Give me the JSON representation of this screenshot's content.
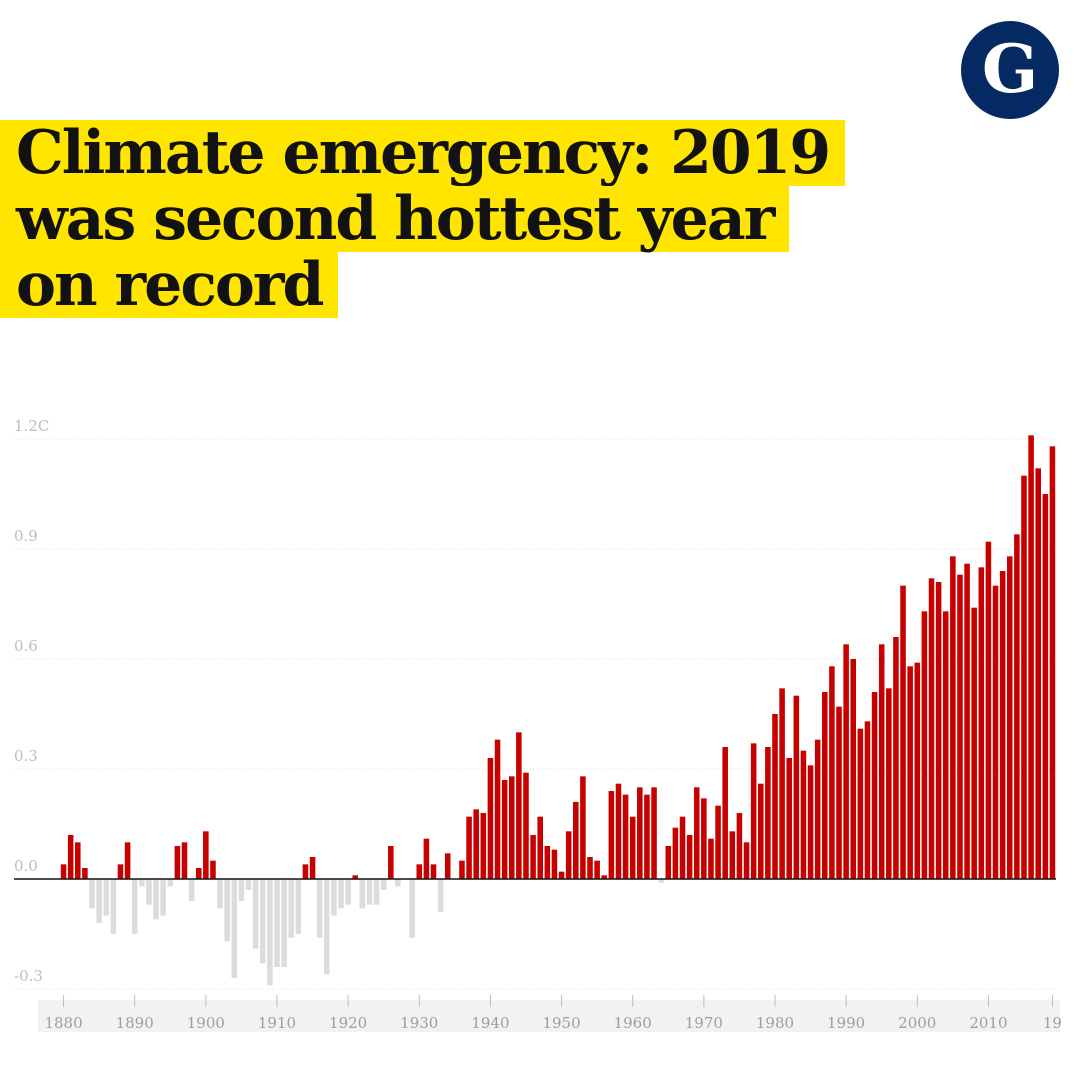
{
  "brand": {
    "logo_letter": "G",
    "logo_color": "#052962"
  },
  "headline": {
    "lines": [
      "Climate emergency: 2019",
      "was second hottest year",
      "on record"
    ],
    "highlight_color": "#ffe500"
  },
  "colors": {
    "positive": "#c70000",
    "negative": "#dcdcdc",
    "axis": "#121212",
    "grid": "#dcdcdc"
  },
  "chart_data": {
    "type": "bar",
    "title": "Climate emergency: 2019 was second hottest year on record",
    "ylim": [
      -0.3,
      1.2
    ],
    "y_ticks": [
      {
        "value": 1.2,
        "label": "1.2C"
      },
      {
        "value": 0.9,
        "label": "0.9"
      },
      {
        "value": 0.6,
        "label": "0.6"
      },
      {
        "value": 0.3,
        "label": "0.3"
      },
      {
        "value": 0.0,
        "label": "0.0"
      },
      {
        "value": -0.3,
        "label": "-0.3"
      }
    ],
    "x_ticks": [
      {
        "year": 1880,
        "label": "1880"
      },
      {
        "year": 1890,
        "label": "1890"
      },
      {
        "year": 1900,
        "label": "1900"
      },
      {
        "year": 1910,
        "label": "1910"
      },
      {
        "year": 1920,
        "label": "1920"
      },
      {
        "year": 1930,
        "label": "1930"
      },
      {
        "year": 1940,
        "label": "1940"
      },
      {
        "year": 1950,
        "label": "1950"
      },
      {
        "year": 1960,
        "label": "1960"
      },
      {
        "year": 1970,
        "label": "1970"
      },
      {
        "year": 1980,
        "label": "1980"
      },
      {
        "year": 1990,
        "label": "1990"
      },
      {
        "year": 2000,
        "label": "2000"
      },
      {
        "year": 2010,
        "label": "2010"
      },
      {
        "year": 2019,
        "label": "19"
      }
    ],
    "grid": true,
    "years": [
      1880,
      1881,
      1882,
      1883,
      1884,
      1885,
      1886,
      1887,
      1888,
      1889,
      1890,
      1891,
      1892,
      1893,
      1894,
      1895,
      1896,
      1897,
      1898,
      1899,
      1900,
      1901,
      1902,
      1903,
      1904,
      1905,
      1906,
      1907,
      1908,
      1909,
      1910,
      1911,
      1912,
      1913,
      1914,
      1915,
      1916,
      1917,
      1918,
      1919,
      1920,
      1921,
      1922,
      1923,
      1924,
      1925,
      1926,
      1927,
      1928,
      1929,
      1930,
      1931,
      1932,
      1933,
      1934,
      1935,
      1936,
      1937,
      1938,
      1939,
      1940,
      1941,
      1942,
      1943,
      1944,
      1945,
      1946,
      1947,
      1948,
      1949,
      1950,
      1951,
      1952,
      1953,
      1954,
      1955,
      1956,
      1957,
      1958,
      1959,
      1960,
      1961,
      1962,
      1963,
      1964,
      1965,
      1966,
      1967,
      1968,
      1969,
      1970,
      1971,
      1972,
      1973,
      1974,
      1975,
      1976,
      1977,
      1978,
      1979,
      1980,
      1981,
      1982,
      1983,
      1984,
      1985,
      1986,
      1987,
      1988,
      1989,
      1990,
      1991,
      1992,
      1993,
      1994,
      1995,
      1996,
      1997,
      1998,
      1999,
      2000,
      2001,
      2002,
      2003,
      2004,
      2005,
      2006,
      2007,
      2008,
      2009,
      2010,
      2011,
      2012,
      2013,
      2014,
      2015,
      2016,
      2017,
      2018,
      2019
    ],
    "values": [
      0.04,
      0.12,
      0.1,
      0.03,
      -0.08,
      -0.12,
      -0.1,
      -0.15,
      0.04,
      0.1,
      -0.15,
      -0.02,
      -0.07,
      -0.11,
      -0.1,
      -0.02,
      0.09,
      0.1,
      -0.06,
      0.03,
      0.13,
      0.05,
      -0.08,
      -0.17,
      -0.27,
      -0.06,
      -0.03,
      -0.19,
      -0.23,
      -0.29,
      -0.24,
      -0.24,
      -0.16,
      -0.15,
      0.04,
      0.06,
      -0.16,
      -0.26,
      -0.1,
      -0.08,
      -0.07,
      0.01,
      -0.08,
      -0.07,
      -0.07,
      -0.03,
      0.09,
      -0.02,
      0.0,
      -0.16,
      0.04,
      0.11,
      0.04,
      -0.09,
      0.07,
      0.0,
      0.05,
      0.17,
      0.19,
      0.18,
      0.33,
      0.38,
      0.27,
      0.28,
      0.4,
      0.29,
      0.12,
      0.17,
      0.09,
      0.08,
      0.02,
      0.13,
      0.21,
      0.28,
      0.06,
      0.05,
      0.01,
      0.24,
      0.26,
      0.23,
      0.17,
      0.25,
      0.23,
      0.25,
      -0.01,
      0.09,
      0.14,
      0.17,
      0.12,
      0.25,
      0.22,
      0.11,
      0.2,
      0.36,
      0.13,
      0.18,
      0.1,
      0.37,
      0.26,
      0.36,
      0.45,
      0.52,
      0.33,
      0.5,
      0.35,
      0.31,
      0.38,
      0.51,
      0.58,
      0.47,
      0.64,
      0.6,
      0.41,
      0.43,
      0.51,
      0.64,
      0.52,
      0.66,
      0.8,
      0.58,
      0.59,
      0.73,
      0.82,
      0.81,
      0.73,
      0.88,
      0.83,
      0.86,
      0.74,
      0.85,
      0.92,
      0.8,
      0.84,
      0.88,
      0.94,
      1.1,
      1.21,
      1.12,
      1.05,
      1.18
    ]
  }
}
